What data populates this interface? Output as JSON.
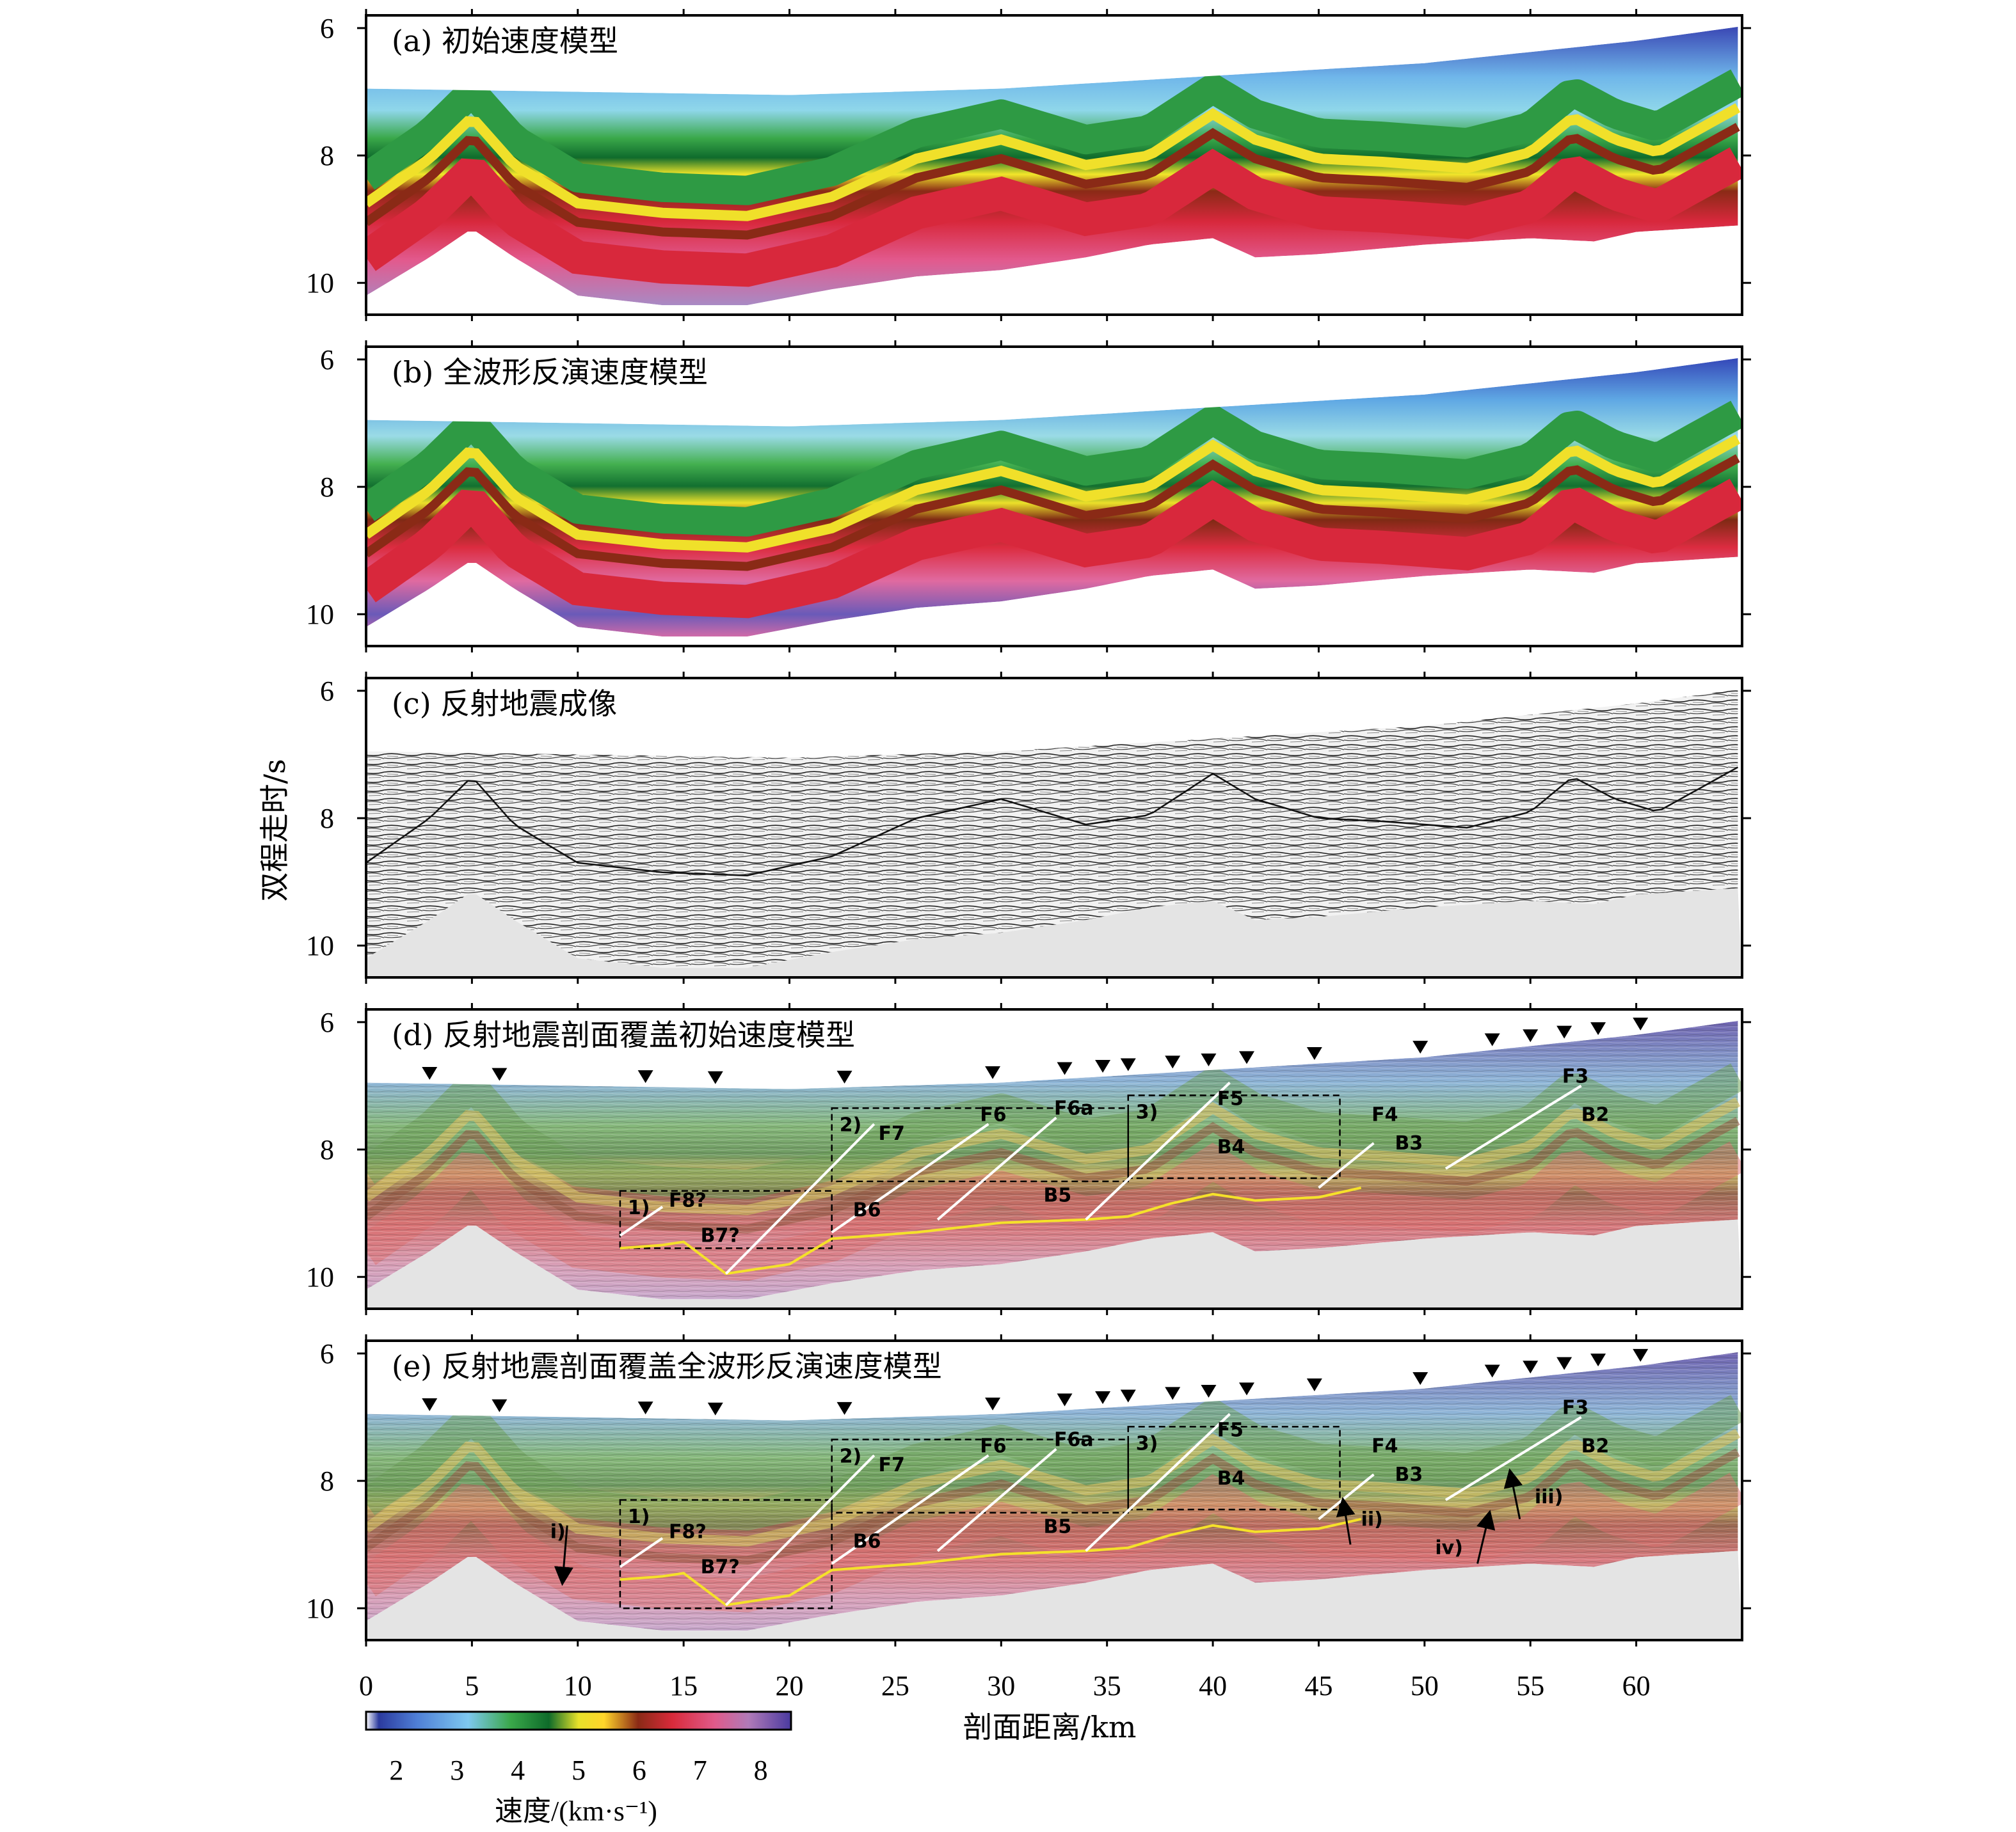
{
  "figure": {
    "panels": [
      {
        "id": "a",
        "title": "(a) 初始速度模型",
        "kind": "velocity-initial"
      },
      {
        "id": "b",
        "title": "(b) 全波形反演速度模型",
        "kind": "velocity-fwi"
      },
      {
        "id": "c",
        "title": "(c) 反射地震成像",
        "kind": "seismic"
      },
      {
        "id": "d",
        "title": "(d) 反射地震剖面覆盖初始速度模型",
        "kind": "overlay-initial"
      },
      {
        "id": "e",
        "title": "(e) 反射地震剖面覆盖全波形反演速度模型",
        "kind": "overlay-fwi"
      }
    ],
    "y_axis": {
      "label": "双程走时/s",
      "range": [
        6,
        10.5
      ],
      "ticks": [
        "6",
        "8",
        "10"
      ]
    },
    "x_axis": {
      "label": "剖面距离/km",
      "range": [
        0,
        65
      ],
      "ticks": [
        "0",
        "5",
        "10",
        "15",
        "20",
        "25",
        "30",
        "35",
        "40",
        "45",
        "50",
        "55",
        "60"
      ]
    },
    "colorbar": {
      "label": "速度/(km·s⁻¹)",
      "range": [
        1.5,
        8.5
      ],
      "ticks": [
        "2",
        "3",
        "4",
        "5",
        "6",
        "7",
        "8"
      ],
      "colors": [
        "#ffffff",
        "#2b3a9e",
        "#4f7fd6",
        "#7ec8f0",
        "#3aa84a",
        "#0e6b2a",
        "#e8e22a",
        "#ffd52a",
        "#8a2a16",
        "#d82a3a",
        "#e05a8a",
        "#b07ab8",
        "#4a3aa0"
      ]
    },
    "annotations": {
      "d": {
        "faults": [
          "F8?",
          "F7",
          "F6",
          "F6a",
          "F5",
          "F4",
          "F3"
        ],
        "blocks": [
          "B7?",
          "B6",
          "B5",
          "B4",
          "B3",
          "B2"
        ],
        "boxes": [
          "1)",
          "2)",
          "3)"
        ],
        "triangle_km": [
          3,
          6.3,
          13.2,
          16.5,
          22.6,
          29.6,
          33,
          34.8,
          36,
          38.1,
          39.8,
          41.6,
          44.8,
          49.8,
          53.2,
          55,
          56.6,
          58.2,
          60.2
        ]
      },
      "e": {
        "faults": [
          "F8?",
          "F7",
          "F6",
          "F6a",
          "F5",
          "F4",
          "F3"
        ],
        "blocks": [
          "B7?",
          "B6",
          "B5",
          "B4",
          "B3",
          "B2"
        ],
        "boxes": [
          "1)",
          "2)",
          "3)"
        ],
        "arrows": [
          "i)",
          "ii)",
          "iii)",
          "iv)"
        ],
        "triangle_km": [
          3,
          6.3,
          13.2,
          16.5,
          22.6,
          29.6,
          33,
          34.8,
          36,
          38.1,
          39.8,
          41.6,
          44.8,
          49.8,
          53.2,
          55,
          56.6,
          58.2,
          60.2
        ]
      }
    }
  }
}
